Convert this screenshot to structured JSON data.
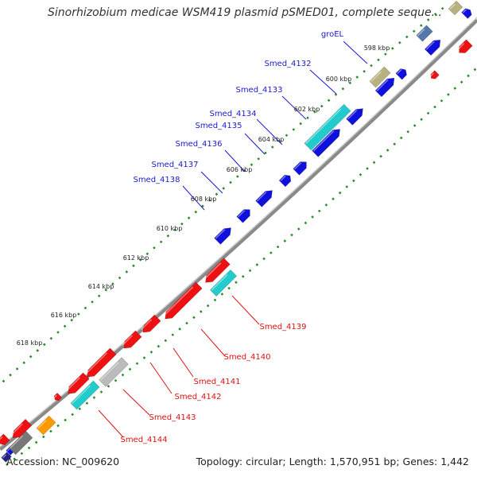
{
  "title": "Sinorhizobium medicae WSM419 plasmid pSMED01, complete seque...",
  "footer": {
    "accession": "Accession: NC_009620",
    "summary": "Topology: circular; Length: 1,570,951 bp; Genes: 1,442"
  },
  "colors": {
    "backbone": "#8a8a8a",
    "forward_cds": "#1010dd",
    "reverse_cds": "#ee1111",
    "rna": "#22cccc",
    "trna": "#b8b280",
    "pseudo": "#bbbbbb",
    "tick_dot": "#2a8a2a",
    "label_blue": "#1a1ad0",
    "label_red": "#dd1111"
  },
  "ticks": [
    "598 kbp",
    "600 kbp",
    "602 kbp",
    "604 kbp",
    "606 kbp",
    "608 kbp",
    "610 kbp",
    "612 kbp",
    "614 kbp",
    "616 kbp",
    "618 kbp"
  ],
  "gene_labels_forward": [
    "groEL",
    "Smed_4132",
    "Smed_4133",
    "Smed_4134",
    "Smed_4135",
    "Smed_4136",
    "Smed_4137",
    "Smed_4138"
  ],
  "gene_labels_reverse": [
    "Smed_4139",
    "Smed_4140",
    "Smed_4141",
    "Smed_4142",
    "Smed_4143",
    "Smed_4144"
  ]
}
